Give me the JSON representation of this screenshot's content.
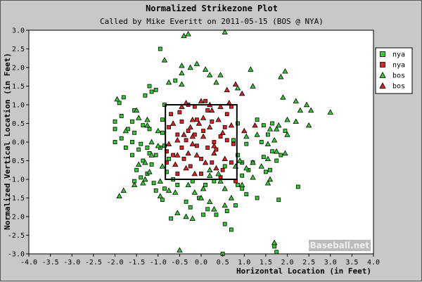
{
  "chart_data": {
    "type": "scatter",
    "title": "Normalized Strikezone Plot",
    "subtitle": "Called by Mike Everitt on 2011-05-15 (BOS @ NYA)",
    "xlabel": "Horizontal Location (in Feet)",
    "ylabel": "Normalized Vertical Location (in Feet)",
    "xlim": [
      -4.0,
      4.0
    ],
    "ylim": [
      -3.0,
      3.0
    ],
    "xticks": [
      "-4.0",
      "-3.5",
      "-3.0",
      "-2.5",
      "-2.0",
      "-1.5",
      "-1.0",
      "-0.5",
      "0.0",
      "0.5",
      "1.0",
      "1.5",
      "2.0",
      "2.5",
      "3.0",
      "3.5",
      "4.0"
    ],
    "yticks": [
      "3.0",
      "2.5",
      "2.0",
      "1.5",
      "1.0",
      "0.5",
      "0.0",
      "-0.5",
      "-1.0",
      "-1.5",
      "-2.0",
      "-2.5",
      "-3.0"
    ],
    "grid": false,
    "legend_position": "right",
    "strike_zone": {
      "x": [
        -0.83,
        0.83
      ],
      "y": [
        -1.0,
        1.0
      ]
    },
    "watermark": "BrooksBaseball.net",
    "series": [
      {
        "name": "nya",
        "marker": "square",
        "color": "#33cc33",
        "points": [
          [
            -0.95,
            2.5
          ],
          [
            -1.15,
            1.35
          ],
          [
            -1.2,
            1.5
          ],
          [
            -1.05,
            1.4
          ],
          [
            -1.8,
            1.2
          ],
          [
            -1.9,
            1.05
          ],
          [
            -1.55,
            0.85
          ],
          [
            -1.85,
            0.7
          ],
          [
            -1.6,
            0.55
          ],
          [
            -2.0,
            0.55
          ],
          [
            -1.7,
            0.35
          ],
          [
            -1.35,
            0.45
          ],
          [
            -1.2,
            0.35
          ],
          [
            -1.55,
            0.25
          ],
          [
            -1.85,
            0.1
          ],
          [
            -2.0,
            0.0
          ],
          [
            -1.6,
            0.0
          ],
          [
            -1.4,
            -0.05
          ],
          [
            -1.25,
            -0.15
          ],
          [
            -1.45,
            -0.2
          ],
          [
            -1.75,
            -0.15
          ],
          [
            -1.2,
            -0.3
          ],
          [
            -1.05,
            -0.35
          ],
          [
            -1.6,
            -0.35
          ],
          [
            -1.35,
            -0.5
          ],
          [
            -1.15,
            -0.6
          ],
          [
            -1.5,
            -0.75
          ],
          [
            -1.25,
            -0.85
          ],
          [
            -1.4,
            -0.95
          ],
          [
            -1.55,
            -1.05
          ],
          [
            -1.1,
            -1.1
          ],
          [
            -1.05,
            -1.3
          ],
          [
            -0.85,
            -1.25
          ],
          [
            -0.9,
            -1.55
          ],
          [
            -0.7,
            -2.05
          ],
          [
            -0.35,
            -1.6
          ],
          [
            -0.25,
            -1.75
          ],
          [
            -0.05,
            -1.5
          ],
          [
            0.05,
            -1.95
          ],
          [
            0.15,
            -1.8
          ],
          [
            0.35,
            -1.95
          ],
          [
            0.55,
            -2.2
          ],
          [
            0.7,
            -2.35
          ],
          [
            0.6,
            -1.85
          ],
          [
            0.8,
            -1.7
          ],
          [
            0.85,
            -1.15
          ],
          [
            0.95,
            -0.9
          ],
          [
            1.1,
            -0.75
          ],
          [
            1.2,
            -0.55
          ],
          [
            0.95,
            -0.55
          ],
          [
            1.45,
            -0.4
          ],
          [
            1.5,
            -0.8
          ],
          [
            1.6,
            -0.75
          ],
          [
            1.75,
            -0.5
          ],
          [
            1.65,
            -0.25
          ],
          [
            1.85,
            -0.35
          ],
          [
            1.4,
            0.0
          ],
          [
            1.55,
            0.2
          ],
          [
            1.45,
            0.45
          ],
          [
            1.3,
            0.6
          ],
          [
            1.65,
            0.5
          ],
          [
            1.95,
            0.3
          ],
          [
            1.05,
            -0.05
          ],
          [
            0.95,
            -1.25
          ],
          [
            1.05,
            -1.4
          ],
          [
            1.3,
            -1.5
          ],
          [
            1.8,
            -1.55
          ],
          [
            2.25,
            -1.2
          ],
          [
            1.7,
            -2.8
          ],
          [
            1.75,
            -2.95
          ],
          [
            0.5,
            -3.0
          ],
          [
            -0.6,
            1.65
          ],
          [
            -0.85,
            1.0
          ],
          [
            -0.9,
            0.6
          ],
          [
            -0.9,
            0.25
          ],
          [
            -0.85,
            -0.1
          ],
          [
            -0.75,
            -0.45
          ],
          [
            -0.8,
            -0.8
          ],
          [
            -0.65,
            -1.0
          ],
          [
            -0.55,
            -1.15
          ],
          [
            -0.2,
            -1.05
          ],
          [
            0.1,
            -1.15
          ],
          [
            0.3,
            -1.05
          ],
          [
            0.55,
            -0.65
          ],
          [
            0.85,
            -0.35
          ],
          [
            0.75,
            0.05
          ],
          [
            0.85,
            0.5
          ],
          [
            -1.3,
            1.25
          ],
          [
            -2.0,
            0.35
          ],
          [
            -0.95,
            -0.15
          ]
        ]
      },
      {
        "name": "nya",
        "marker": "square",
        "color": "#dd2222",
        "points": [
          [
            -0.7,
            0.75
          ],
          [
            -0.5,
            0.8
          ],
          [
            -0.45,
            0.55
          ],
          [
            -0.3,
            0.3
          ],
          [
            -0.55,
            0.2
          ],
          [
            -0.75,
            0.4
          ],
          [
            -0.35,
            0.05
          ],
          [
            -0.15,
            0.2
          ],
          [
            0.05,
            0.3
          ],
          [
            0.25,
            0.55
          ],
          [
            0.15,
            0.85
          ],
          [
            -0.1,
            0.6
          ],
          [
            0.45,
            0.15
          ],
          [
            0.6,
            0.75
          ],
          [
            0.55,
            0.4
          ],
          [
            0.35,
            -0.2
          ],
          [
            0.15,
            -0.15
          ],
          [
            -0.1,
            -0.1
          ],
          [
            -0.45,
            -0.15
          ],
          [
            -0.65,
            -0.35
          ],
          [
            -0.8,
            -0.25
          ],
          [
            -0.4,
            -0.45
          ],
          [
            -0.25,
            -0.65
          ],
          [
            0.0,
            -0.45
          ],
          [
            0.25,
            -0.55
          ],
          [
            0.5,
            -0.75
          ],
          [
            0.7,
            -0.55
          ],
          [
            0.75,
            -0.05
          ],
          [
            -0.55,
            -0.85
          ],
          [
            0.45,
            -0.95
          ],
          [
            0.8,
            -1.05
          ],
          [
            -0.3,
            1.0
          ],
          [
            0.1,
            1.1
          ],
          [
            0.7,
            0.95
          ],
          [
            -0.8,
            -0.55
          ],
          [
            0.3,
            0.0
          ],
          [
            0.6,
            0.05
          ],
          [
            -0.15,
            0.95
          ],
          [
            0.0,
            -0.85
          ]
        ]
      },
      {
        "name": "bos",
        "marker": "triangle",
        "color": "#33cc33",
        "points": [
          [
            0.55,
            2.95
          ],
          [
            1.85,
            3.15
          ],
          [
            -0.4,
            2.85
          ],
          [
            -0.3,
            2.9
          ],
          [
            -0.85,
            2.2
          ],
          [
            -0.45,
            2.05
          ],
          [
            -0.25,
            2.0
          ],
          [
            -0.1,
            2.1
          ],
          [
            0.1,
            1.95
          ],
          [
            0.2,
            1.8
          ],
          [
            -0.45,
            1.85
          ],
          [
            0.45,
            1.8
          ],
          [
            1.15,
            1.95
          ],
          [
            1.85,
            1.75
          ],
          [
            1.95,
            1.9
          ],
          [
            1.2,
            1.5
          ],
          [
            0.85,
            1.45
          ],
          [
            -0.75,
            1.6
          ],
          [
            -0.45,
            1.55
          ],
          [
            0.35,
            1.6
          ],
          [
            1.9,
            1.2
          ],
          [
            2.2,
            1.1
          ],
          [
            2.3,
            0.85
          ],
          [
            2.45,
            1.0
          ],
          [
            2.55,
            0.85
          ],
          [
            3.0,
            0.8
          ],
          [
            2.0,
            0.6
          ],
          [
            1.8,
            0.45
          ],
          [
            1.75,
            0.35
          ],
          [
            1.6,
            0.35
          ],
          [
            1.3,
            0.2
          ],
          [
            2.2,
            0.55
          ],
          [
            2.5,
            0.45
          ],
          [
            1.7,
            0.05
          ],
          [
            1.55,
            -0.05
          ],
          [
            1.75,
            -0.25
          ],
          [
            1.95,
            -0.3
          ],
          [
            1.55,
            -0.45
          ],
          [
            1.4,
            -0.65
          ],
          [
            1.2,
            -0.95
          ],
          [
            1.05,
            -0.7
          ],
          [
            0.9,
            -0.5
          ],
          [
            0.8,
            -0.65
          ],
          [
            1.55,
            -1.1
          ],
          [
            1.6,
            -1.0
          ],
          [
            0.95,
            -1.15
          ],
          [
            1.2,
            -0.55
          ],
          [
            0.55,
            -1.25
          ],
          [
            0.7,
            -1.5
          ],
          [
            0.55,
            -1.7
          ],
          [
            -1.5,
            0.85
          ],
          [
            -1.45,
            0.65
          ],
          [
            -1.25,
            0.45
          ],
          [
            -1.25,
            0.6
          ],
          [
            -1.0,
            0.3
          ],
          [
            -1.15,
            0.0
          ],
          [
            -1.0,
            -0.1
          ],
          [
            -1.15,
            -0.35
          ],
          [
            -1.3,
            -0.55
          ],
          [
            -1.45,
            -0.6
          ],
          [
            -1.2,
            -0.8
          ],
          [
            -1.3,
            -1.0
          ],
          [
            -1.35,
            -1.1
          ],
          [
            -1.55,
            -1.15
          ],
          [
            -1.8,
            -1.3
          ],
          [
            -1.9,
            -1.45
          ],
          [
            -0.95,
            -1.05
          ],
          [
            -0.75,
            -1.3
          ],
          [
            -0.6,
            -1.35
          ],
          [
            -0.3,
            -1.15
          ],
          [
            -0.15,
            -1.35
          ],
          [
            0.05,
            -1.25
          ],
          [
            0.2,
            -0.9
          ],
          [
            0.2,
            -0.75
          ],
          [
            0.4,
            -0.85
          ],
          [
            -0.55,
            -1.9
          ],
          [
            -0.2,
            -2.05
          ],
          [
            -0.35,
            -2.0
          ],
          [
            0.2,
            -1.6
          ],
          [
            0.3,
            -1.8
          ],
          [
            -0.95,
            -1.45
          ],
          [
            -0.5,
            -2.9
          ],
          [
            1.7,
            -2.7
          ],
          [
            2.0,
            0.2
          ],
          [
            1.05,
            0.15
          ],
          [
            -0.9,
            -0.65
          ],
          [
            0.0,
            -1.5
          ],
          [
            0.45,
            -1.05
          ],
          [
            -1.75,
            0.3
          ],
          [
            -1.95,
            1.15
          ]
        ]
      },
      {
        "name": "bos",
        "marker": "triangle",
        "color": "#dd2222",
        "points": [
          [
            -0.35,
            1.05
          ],
          [
            -0.2,
            0.6
          ],
          [
            -0.25,
            0.4
          ],
          [
            -0.05,
            0.5
          ],
          [
            0.05,
            0.65
          ],
          [
            0.25,
            0.85
          ],
          [
            0.4,
            0.6
          ],
          [
            0.5,
            0.25
          ],
          [
            0.2,
            0.4
          ],
          [
            -0.4,
            0.2
          ],
          [
            -0.55,
            0.05
          ],
          [
            -0.2,
            -0.05
          ],
          [
            0.05,
            0.15
          ],
          [
            0.3,
            -0.3
          ],
          [
            -0.1,
            -0.35
          ],
          [
            -0.35,
            -0.7
          ],
          [
            -0.6,
            -0.6
          ],
          [
            0.1,
            -0.55
          ],
          [
            0.35,
            -0.7
          ],
          [
            -0.15,
            -0.85
          ],
          [
            0.55,
            -0.45
          ],
          [
            -0.65,
            0.5
          ],
          [
            0.7,
            0.45
          ],
          [
            0.65,
            1.05
          ],
          [
            -0.75,
            -0.05
          ],
          [
            0.45,
            0.95
          ],
          [
            -0.45,
            0.95
          ],
          [
            0.0,
            1.1
          ],
          [
            1.25,
            0.45
          ],
          [
            0.95,
            1.3
          ],
          [
            0.8,
            1.55
          ],
          [
            0.6,
            1.4
          ],
          [
            1.0,
            0.3
          ],
          [
            0.2,
            1.0
          ],
          [
            0.3,
            -0.1
          ],
          [
            -0.3,
            -0.3
          ],
          [
            -0.55,
            -0.35
          ],
          [
            -0.2,
            0.15
          ]
        ]
      }
    ]
  }
}
